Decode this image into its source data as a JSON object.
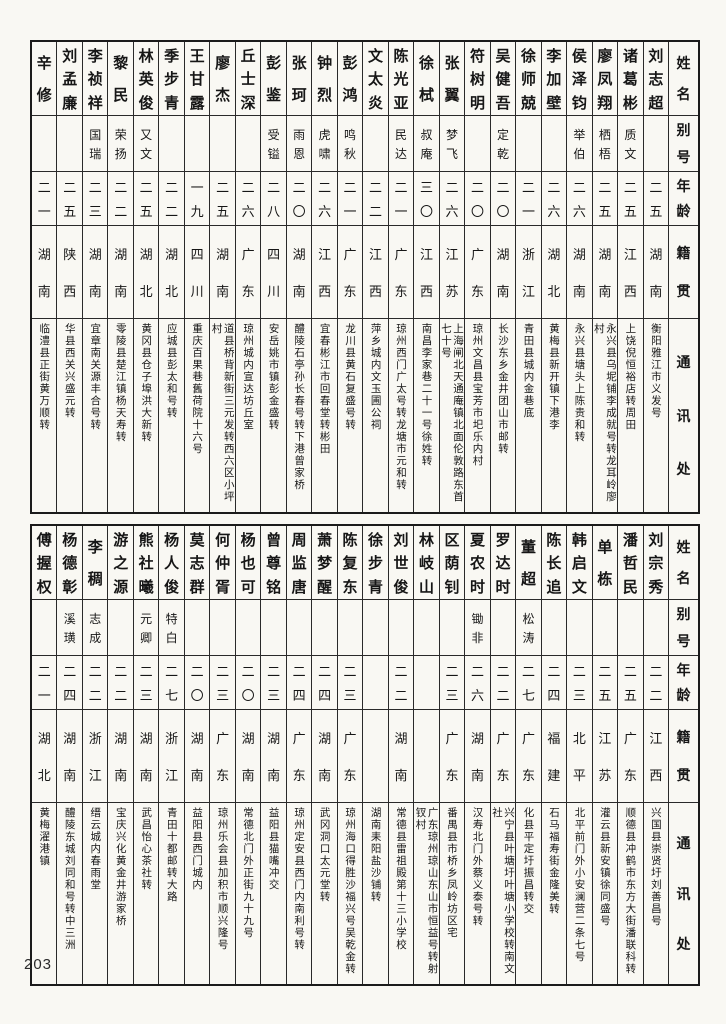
{
  "page_number": "203",
  "colors": {
    "ink": "#1b1b1b",
    "paper": "#f9f8f3"
  },
  "headers": [
    "姓名",
    "别号",
    "年龄",
    "籍贯",
    "通讯处"
  ],
  "tables": [
    {
      "people": [
        {
          "name": "刘志超",
          "alias": "",
          "age": "二五",
          "origin": "湖南",
          "addr": "衡阳雅江市义发号"
        },
        {
          "name": "诸葛彬",
          "alias": "质文",
          "age": "二五",
          "origin": "江西",
          "addr": "上饶倪恒裕店转周田"
        },
        {
          "name": "廖凤翔",
          "alias": "栖梧",
          "age": "二五",
          "origin": "湖南",
          "addr": "永兴县乌坭铺李成就号转龙耳岭廖村"
        },
        {
          "name": "侯泽钧",
          "alias": "举伯",
          "age": "二六",
          "origin": "湖南",
          "addr": "永兴县塘头上陈贵和转"
        },
        {
          "name": "李加壁",
          "alias": "",
          "age": "二六",
          "origin": "湖北",
          "addr": "黄梅县新开镇下港李"
        },
        {
          "name": "徐师兢",
          "alias": "",
          "age": "二一",
          "origin": "浙江",
          "addr": "青田县城内金巷底"
        },
        {
          "name": "吴健吾",
          "alias": "定乾",
          "age": "二〇",
          "origin": "湖南",
          "addr": "长沙东乡金井团山市邮转"
        },
        {
          "name": "符树明",
          "alias": "",
          "age": "二〇",
          "origin": "广东",
          "addr": "琼州文昌县宝芳市圯乐内村"
        },
        {
          "name": "张翼",
          "alias": "梦飞",
          "age": "二六",
          "origin": "江苏",
          "addr": "上海闸北天通庵镇北面伦敦路东首七十号"
        },
        {
          "name": "徐栻",
          "alias": "叔庵",
          "age": "三〇",
          "origin": "江西",
          "addr": "南昌李家巷二十一号徐姓转"
        },
        {
          "name": "陈光亚",
          "alias": "民达",
          "age": "二一",
          "origin": "广东",
          "addr": "琼州西门广太号转龙塘市元和转"
        },
        {
          "name": "文太炎",
          "alias": "",
          "age": "二二",
          "origin": "江西",
          "addr": "萍乡城内文玉圃公祠"
        },
        {
          "name": "彭鸿",
          "alias": "鸣秋",
          "age": "二一",
          "origin": "广东",
          "addr": "龙川县黄石复盛号转"
        },
        {
          "name": "钟烈",
          "alias": "虎啸",
          "age": "二六",
          "origin": "江西",
          "addr": "宜春彬江市回春堂转彬田"
        },
        {
          "name": "张珂",
          "alias": "雨恩",
          "age": "二〇",
          "origin": "湖南",
          "addr": "醴陵石亭孙长春号转下港曾家桥"
        },
        {
          "name": "彭鉴",
          "alias": "受镒",
          "age": "二八",
          "origin": "四川",
          "addr": "安岳姚市镇彭金盛转"
        },
        {
          "name": "丘士深",
          "alias": "",
          "age": "二六",
          "origin": "广东",
          "addr": "琼州城内宣达坊丘室"
        },
        {
          "name": "廖杰",
          "alias": "",
          "age": "二五",
          "origin": "湖南",
          "addr": "道县桥背新街三元发转西六区小坪村"
        },
        {
          "name": "王甘露",
          "alias": "",
          "age": "一九",
          "origin": "四川",
          "addr": "重庆百果巷舊荷院十六号"
        },
        {
          "name": "季步青",
          "alias": "",
          "age": "二二",
          "origin": "湖北",
          "addr": "应城县彭太和号转"
        },
        {
          "name": "林英俊",
          "alias": "又文",
          "age": "二五",
          "origin": "湖北",
          "addr": "黄冈县仓子埠洪大新转"
        },
        {
          "name": "黎民",
          "alias": "荣扬",
          "age": "二二",
          "origin": "湖南",
          "addr": "零陵县楚江镇杨天寿转"
        },
        {
          "name": "李祯祥",
          "alias": "国瑞",
          "age": "二三",
          "origin": "湖南",
          "addr": "宜章南关源丰合号转"
        },
        {
          "name": "刘孟廉",
          "alias": "",
          "age": "二五",
          "origin": "陕西",
          "addr": "华县西关兴盛元转"
        },
        {
          "name": "辛修",
          "alias": "",
          "age": "二一",
          "origin": "湖南",
          "addr": "临澧县正街黄万顺转"
        }
      ]
    },
    {
      "people": [
        {
          "name": "刘宗秀",
          "alias": "",
          "age": "二二",
          "origin": "江西",
          "addr": "兴国县崇贤圩刘善昌号"
        },
        {
          "name": "潘哲民",
          "alias": "",
          "age": "二五",
          "origin": "广东",
          "addr": "顺德县冲鹤市东方大街潘联科转"
        },
        {
          "name": "单栋",
          "alias": "",
          "age": "二五",
          "origin": "江苏",
          "addr": "灌云县新安镇徐同盛号"
        },
        {
          "name": "韩启文",
          "alias": "",
          "age": "二三",
          "origin": "北平",
          "addr": "北平前门外小安澜营二条七号"
        },
        {
          "name": "陈长追",
          "alias": "",
          "age": "二四",
          "origin": "福建",
          "addr": "石马福寿街金隆美转"
        },
        {
          "name": "董超",
          "alias": "松涛",
          "age": "二七",
          "origin": "广东",
          "addr": "化县平定圩振昌转交"
        },
        {
          "name": "罗达时",
          "alias": "",
          "age": "二二",
          "origin": "广东",
          "addr": "兴宁县叶塘圩叶塘小学校转南文社"
        },
        {
          "name": "夏农时",
          "alias": "锄非",
          "age": "二六",
          "origin": "湖南",
          "addr": "汉寿北门外蔡义泰号转"
        },
        {
          "name": "区荫钊",
          "alias": "",
          "age": "二三",
          "origin": "广东",
          "addr": "番禺县市桥乡凤岭坊区宅"
        },
        {
          "name": "林岐山",
          "alias": "",
          "age": "",
          "origin": "",
          "addr": "广东琼州琼山东山市恒益号转射钗村"
        },
        {
          "name": "刘世俊",
          "alias": "",
          "age": "二二",
          "origin": "湖南",
          "addr": "常德县雷祖殿第十三小学校"
        },
        {
          "name": "徐步青",
          "alias": "",
          "age": "",
          "origin": "",
          "addr": "湖南耒阳盐沙铺转"
        },
        {
          "name": "陈复东",
          "alias": "",
          "age": "二三",
          "origin": "广东",
          "addr": "琼州海口得胜沙福兴号吴乾金转"
        },
        {
          "name": "萧梦醒",
          "alias": "",
          "age": "二四",
          "origin": "湖南",
          "addr": "武冈洞口太元堂转"
        },
        {
          "name": "周监唐",
          "alias": "",
          "age": "二四",
          "origin": "广东",
          "addr": "琼州定安县西门内南利号转"
        },
        {
          "name": "曾尊铭",
          "alias": "",
          "age": "二三",
          "origin": "湖南",
          "addr": "益阳县猫嘴冲交"
        },
        {
          "name": "杨也可",
          "alias": "",
          "age": "二〇",
          "origin": "湖南",
          "addr": "常德北门外正街九十九号"
        },
        {
          "name": "何仲胥",
          "alias": "",
          "age": "二三",
          "origin": "广东",
          "addr": "琼州乐会县加积市顺兴隆号"
        },
        {
          "name": "莫志群",
          "alias": "",
          "age": "二〇",
          "origin": "湖南",
          "addr": "益阳县西门城内"
        },
        {
          "name": "杨人俊",
          "alias": "特白",
          "age": "二七",
          "origin": "浙江",
          "addr": "青田十都邮转大路"
        },
        {
          "name": "熊社曦",
          "alias": "元卿",
          "age": "二三",
          "origin": "湖南",
          "addr": "武昌怡心茶社转"
        },
        {
          "name": "游之源",
          "alias": "",
          "age": "二二",
          "origin": "湖南",
          "addr": "宝庆兴化黄金井游家桥"
        },
        {
          "name": "李稠",
          "alias": "志成",
          "age": "二二",
          "origin": "浙江",
          "addr": "缙云城内春雨堂"
        },
        {
          "name": "杨德彰",
          "alias": "溪璜",
          "age": "二四",
          "origin": "湖南",
          "addr": "醴陵东城刘同和号转中三洲"
        },
        {
          "name": "傅握权",
          "alias": "",
          "age": "二一",
          "origin": "湖北",
          "addr": "黄梅濯港镇"
        }
      ]
    }
  ]
}
